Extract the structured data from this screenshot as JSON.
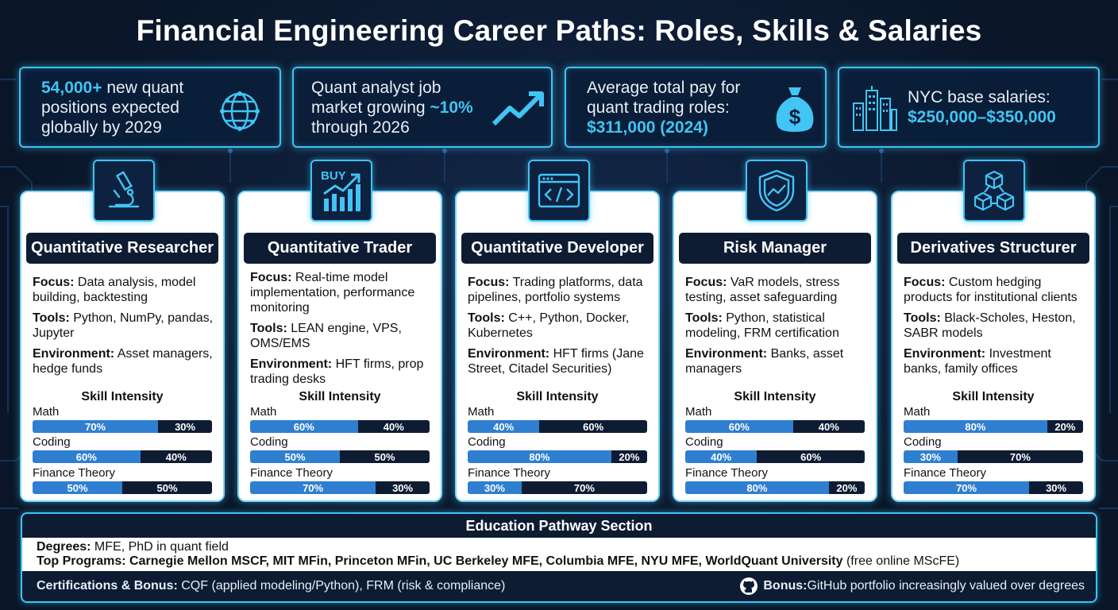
{
  "title": "Financial Engineering Career Paths: Roles, Skills & Salaries",
  "stats": [
    {
      "highlight": "54,000+",
      "line1": " new quant",
      "line2": "positions expected",
      "line3": "globally by 2029",
      "icon": "globe-network-icon"
    },
    {
      "line1": "Quant analyst job",
      "line2": "market growing ",
      "highlight": "~10%",
      "line3": "through 2026",
      "icon": "trending-up-arrow-icon"
    },
    {
      "line1": "Average total pay for",
      "line2": "quant trading roles:",
      "highlight": "$311,000 (2024)",
      "icon": "money-bag-icon"
    },
    {
      "line1": "NYC base salaries:",
      "highlight": "$250,000–$350,000",
      "icon": "city-skyline-icon"
    }
  ],
  "skill_title": "Skill Intensity",
  "skill_labels": [
    "Math",
    "Coding",
    "Finance Theory"
  ],
  "roles": [
    {
      "name": "Quantitative Researcher",
      "icon": "microscope-icon",
      "focus_label": "Focus:",
      "focus": " Data analysis, model building, backtesting",
      "tools_label": "Tools:",
      "tools": " Python, NumPy, pandas, Jupyter",
      "env_label": "Environment:",
      "env": " Asset managers, hedge funds",
      "skills": [
        [
          "70%",
          "30%"
        ],
        [
          "60%",
          "40%"
        ],
        [
          "50%",
          "50%"
        ]
      ],
      "skill_values": [
        70,
        60,
        50
      ]
    },
    {
      "name": "Quantitative Trader",
      "icon": "buy-chart-icon",
      "icon_text": "BUY",
      "focus_label": "Focus:",
      "focus": " Real-time model implementation, performance monitoring",
      "tools_label": "Tools:",
      "tools": " LEAN engine, VPS, OMS/EMS",
      "env_label": "Environment:",
      "env": " HFT firms, prop trading desks",
      "skills": [
        [
          "60%",
          "40%"
        ],
        [
          "50%",
          "50%"
        ],
        [
          "70%",
          "30%"
        ]
      ],
      "skill_values": [
        60,
        50,
        70
      ]
    },
    {
      "name": "Quantitative Developer",
      "icon": "code-window-icon",
      "focus_label": "Focus:",
      "focus": " Trading platforms, data pipelines, portfolio systems",
      "tools_label": "Tools:",
      "tools": " C++, Python, Docker, Kubernetes",
      "env_label": "Environment:",
      "env": " HFT firms (Jane Street, Citadel Securities)",
      "skills": [
        [
          "40%",
          "60%"
        ],
        [
          "80%",
          "20%"
        ],
        [
          "30%",
          "70%"
        ]
      ],
      "skill_values": [
        40,
        80,
        30
      ]
    },
    {
      "name": "Risk Manager",
      "icon": "shield-chart-icon",
      "focus_label": "Focus:",
      "focus": " VaR models, stress testing, asset safeguarding",
      "tools_label": "Tools:",
      "tools": " Python, statistical modeling, FRM certification",
      "env_label": "Environment:",
      "env": " Banks, asset managers",
      "skills": [
        [
          "60%",
          "40%"
        ],
        [
          "40%",
          "60%"
        ],
        [
          "80%",
          "20%"
        ]
      ],
      "skill_values": [
        60,
        40,
        80
      ]
    },
    {
      "name": "Derivatives Structurer",
      "icon": "cubes-network-icon",
      "focus_label": "Focus:",
      "focus": " Custom hedging products for institutional clients",
      "tools_label": "Tools:",
      "tools": " Black-Scholes, Heston, SABR models",
      "env_label": "Environment:",
      "env": " Investment banks, family offices",
      "skills": [
        [
          "80%",
          "20%"
        ],
        [
          "30%",
          "70%"
        ],
        [
          "70%",
          "30%"
        ]
      ],
      "skill_values": [
        80,
        30,
        70
      ]
    }
  ],
  "education": {
    "title": "Education Pathway Section",
    "degrees_label": "Degrees:",
    "degrees": " MFE, PhD in quant field",
    "programs_label": "Top Programs:",
    "programs": " Carnegie Mellon MSCF, MIT MFin, Princeton MFin, UC Berkeley MFE, Columbia MFE, NYU MFE, WorldQuant University",
    "programs_note": " (free online MScFE)",
    "cert_label": "Certifications & Bonus:",
    "cert": " CQF (applied modeling/Python), FRM (risk & compliance)",
    "bonus_label": "Bonus:",
    "bonus": " GitHub portfolio increasingly valued over degrees",
    "bonus_icon": "github-icon"
  },
  "colors": {
    "accent": "#3fc3f5",
    "bar_primary": "#2f7fd0",
    "bar_secondary": "#0e1c33",
    "background": "#0a1628"
  }
}
